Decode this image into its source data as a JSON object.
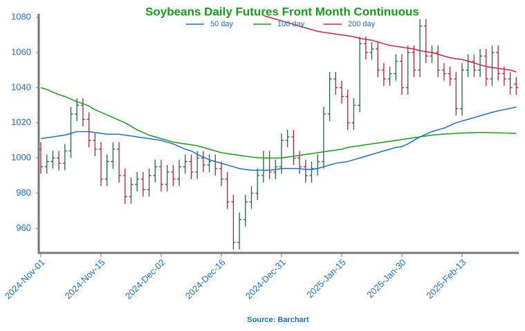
{
  "chart_data": {
    "type": "ohlc",
    "title": "Soybeans Daily Futures Front Month Continuous",
    "source": "Source: Barchart",
    "up_color": "#1a6b3a",
    "down_color": "#b3203c",
    "categories": [
      "2024-Nov-01",
      null,
      null,
      null,
      null,
      null,
      null,
      null,
      null,
      null,
      "2024-Nov-15",
      null,
      null,
      null,
      null,
      null,
      null,
      null,
      null,
      null,
      "2024-Dec-02",
      null,
      null,
      null,
      null,
      null,
      null,
      null,
      null,
      null,
      "2024-Dec-16",
      null,
      null,
      null,
      null,
      null,
      null,
      null,
      null,
      null,
      "2024-Dec-31",
      null,
      null,
      null,
      null,
      null,
      null,
      null,
      null,
      null,
      "2025-Jan-15",
      null,
      null,
      null,
      null,
      null,
      null,
      null,
      null,
      null,
      "2025-Jan-30",
      null,
      null,
      null,
      null,
      null,
      null,
      null,
      null,
      null,
      "2025-Feb-13",
      null,
      null,
      null,
      null,
      null,
      null,
      null,
      null,
      null
    ],
    "open": [
      1005,
      995,
      998,
      1000,
      997,
      1004,
      1025,
      1030,
      1022,
      1010,
      1005,
      988,
      998,
      1005,
      990,
      978,
      985,
      988,
      982,
      990,
      995,
      985,
      992,
      988,
      995,
      998,
      992,
      1000,
      996,
      998,
      994,
      988,
      975,
      952,
      965,
      975,
      980,
      990,
      1000,
      992,
      995,
      1010,
      1012,
      1000,
      995,
      990,
      994,
      998,
      1025,
      1045,
      1040,
      1035,
      1020,
      1030,
      1065,
      1060,
      1062,
      1050,
      1045,
      1048,
      1055,
      1040,
      1060,
      1050,
      1075,
      1058,
      1060,
      1050,
      1048,
      1045,
      1028,
      1050,
      1055,
      1050,
      1058,
      1045,
      1060,
      1048,
      1045,
      1042
    ],
    "high": [
      1009,
      1002,
      1004,
      1004,
      1008,
      1029,
      1034,
      1034,
      1026,
      1014,
      1009,
      1002,
      1009,
      1009,
      994,
      989,
      992,
      992,
      994,
      999,
      999,
      996,
      996,
      999,
      1002,
      1002,
      1004,
      1004,
      1002,
      1002,
      998,
      992,
      979,
      969,
      979,
      984,
      994,
      1004,
      1004,
      999,
      1014,
      1016,
      1016,
      1004,
      999,
      998,
      1002,
      1029,
      1049,
      1049,
      1044,
      1039,
      1034,
      1069,
      1069,
      1066,
      1066,
      1054,
      1052,
      1059,
      1059,
      1064,
      1064,
      1079,
      1079,
      1064,
      1064,
      1054,
      1052,
      1049,
      1054,
      1059,
      1059,
      1062,
      1062,
      1064,
      1064,
      1052,
      1049,
      1046
    ],
    "low": [
      991,
      991,
      994,
      993,
      993,
      1000,
      1021,
      1018,
      1006,
      1001,
      984,
      984,
      994,
      986,
      974,
      974,
      981,
      978,
      978,
      986,
      981,
      981,
      984,
      984,
      991,
      988,
      988,
      992,
      992,
      990,
      984,
      971,
      948,
      948,
      961,
      971,
      976,
      986,
      988,
      988,
      991,
      1006,
      996,
      991,
      986,
      986,
      990,
      994,
      1021,
      1036,
      1031,
      1016,
      1016,
      1026,
      1056,
      1056,
      1046,
      1041,
      1041,
      1044,
      1036,
      1036,
      1046,
      1046,
      1054,
      1054,
      1046,
      1044,
      1041,
      1024,
      1024,
      1046,
      1046,
      1046,
      1041,
      1041,
      1044,
      1041,
      1036,
      1036
    ],
    "close": [
      995,
      998,
      1000,
      997,
      1004,
      1025,
      1030,
      1022,
      1010,
      1005,
      988,
      998,
      1005,
      990,
      978,
      985,
      988,
      982,
      990,
      995,
      985,
      992,
      988,
      995,
      998,
      992,
      1000,
      996,
      998,
      994,
      988,
      975,
      952,
      965,
      975,
      980,
      990,
      1000,
      992,
      995,
      1010,
      1012,
      1000,
      995,
      990,
      994,
      998,
      1025,
      1045,
      1040,
      1035,
      1020,
      1030,
      1065,
      1060,
      1062,
      1050,
      1045,
      1048,
      1055,
      1040,
      1060,
      1050,
      1075,
      1058,
      1060,
      1050,
      1048,
      1045,
      1028,
      1050,
      1055,
      1050,
      1058,
      1045,
      1060,
      1048,
      1045,
      1040,
      1040
    ],
    "series": [
      {
        "name": "50 day",
        "color": "#1a6fd0",
        "values": [
          1011,
          1011.5,
          1012,
          1012.5,
          1013,
          1014,
          1015,
          1015,
          1015,
          1014.5,
          1014,
          1013.5,
          1013.5,
          1013.5,
          1013,
          1012.5,
          1012,
          1011.5,
          1011,
          1010.5,
          1010,
          1009,
          1008,
          1006.5,
          1005,
          1004,
          1002,
          1000.5,
          999,
          998,
          997,
          996,
          995,
          994,
          993.5,
          993,
          993,
          993,
          993,
          993.5,
          994,
          994,
          994,
          994,
          993.5,
          993.5,
          994,
          995,
          996,
          997,
          997.5,
          998,
          999,
          1000,
          1001,
          1002,
          1003,
          1004,
          1005,
          1006,
          1006.5,
          1008,
          1010,
          1012,
          1013.5,
          1015,
          1016,
          1017,
          1018.5,
          1020,
          1021,
          1022,
          1023,
          1024,
          1025,
          1026,
          1026.8,
          1027.5,
          1028.2,
          1029
        ]
      },
      {
        "name": "100 day",
        "color": "#14a014",
        "values": [
          1040,
          1039,
          1037.5,
          1036,
          1035,
          1033.5,
          1032,
          1031,
          1029.5,
          1027.5,
          1026,
          1024.5,
          1023,
          1021.5,
          1020,
          1018,
          1016,
          1014.5,
          1013,
          1012,
          1011,
          1010,
          1009,
          1008.5,
          1008,
          1007.5,
          1007,
          1006,
          1005,
          1004,
          1003,
          1002.5,
          1002,
          1001.5,
          1001,
          1000.5,
          1000.2,
          1000,
          1000,
          1000,
          1000,
          1000.5,
          1001,
          1001.5,
          1002,
          1002.5,
          1003,
          1003.5,
          1004,
          1004.5,
          1005,
          1006,
          1006.5,
          1007,
          1007.5,
          1008,
          1008.5,
          1009,
          1009.5,
          1010,
          1010.5,
          1011,
          1011.5,
          1012,
          1012.5,
          1013,
          1013.3,
          1013.6,
          1013.8,
          1014,
          1014.2,
          1014.3,
          1014.4,
          1014.5,
          1014.5,
          1014.4,
          1014.3,
          1014.2,
          1014.1,
          1014
        ]
      },
      {
        "name": "200 day",
        "color": "#d8203c",
        "values": [
          null,
          null,
          null,
          null,
          null,
          null,
          null,
          null,
          null,
          null,
          null,
          null,
          null,
          null,
          null,
          null,
          null,
          null,
          null,
          null,
          null,
          null,
          null,
          null,
          null,
          null,
          null,
          null,
          null,
          null,
          null,
          null,
          null,
          null,
          null,
          null,
          null,
          1081,
          1080,
          1079,
          1078,
          1077,
          1076,
          1075,
          1074,
          1073,
          1072,
          1071.5,
          1071,
          1070.5,
          1070,
          1069.5,
          1069,
          1068,
          1067.5,
          1067,
          1066,
          1065,
          1064,
          1063.5,
          1063,
          1062.5,
          1062,
          1061,
          1060.5,
          1060,
          1059,
          1058,
          1057,
          1056.5,
          1056,
          1055,
          1054,
          1053,
          1052,
          1051.5,
          1051,
          1050.5,
          1050,
          1049
        ]
      }
    ],
    "ylim": [
      946,
      1082
    ],
    "yticks": [
      960,
      980,
      1000,
      1020,
      1040,
      1060,
      1080
    ]
  }
}
